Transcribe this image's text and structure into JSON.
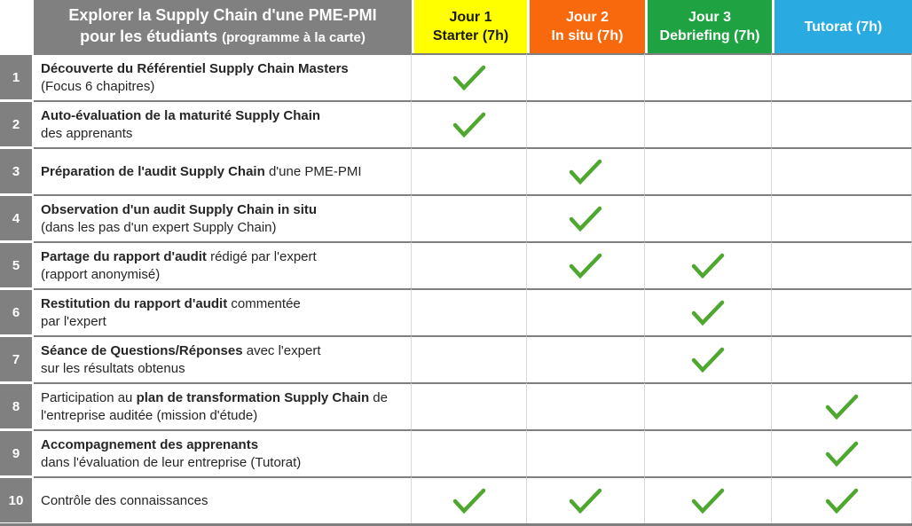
{
  "header": {
    "title_line1": "Explorer la Supply Chain d'une PME-PMI",
    "title_line2_main": "pour les étudiants ",
    "title_line2_note": "(programme à la carte)",
    "title_bg": "#808080",
    "columns": [
      {
        "id": "jour1",
        "label_line1": "Jour 1",
        "label_line2": "Starter (7h)",
        "bg": "#FFFF00",
        "color": "#1a1a1a"
      },
      {
        "id": "jour2",
        "label_line1": "Jour 2",
        "label_line2": "In situ (7h)",
        "bg": "#F8690D",
        "color": "#FFFFFF"
      },
      {
        "id": "jour3",
        "label_line1": "Jour 3",
        "label_line2": "Debriefing (7h)",
        "bg": "#1FA342",
        "color": "#FFFFFF"
      },
      {
        "id": "tutorat",
        "label_line1": "Tutorat (7h)",
        "label_line2": "",
        "bg": "#29ABE2",
        "color": "#FFFFFF"
      }
    ]
  },
  "check_icon": {
    "name": "green-checkmark",
    "color": "#4EA72E"
  },
  "rows": [
    {
      "num": "1",
      "segments": [
        {
          "text": "Découverte du Référentiel Supply Chain Masters",
          "bold": true
        },
        {
          "text": "(Focus 6 chapitres)",
          "bold": false,
          "break_before": true
        }
      ],
      "checks": [
        true,
        false,
        false,
        false
      ]
    },
    {
      "num": "2",
      "segments": [
        {
          "text": "Auto-évaluation de la maturité Supply Chain",
          "bold": true
        },
        {
          "text": "des apprenants",
          "bold": false,
          "break_before": true
        }
      ],
      "checks": [
        true,
        false,
        false,
        false
      ]
    },
    {
      "num": "3",
      "segments": [
        {
          "text": "Préparation de l'audit Supply Chain",
          "bold": true
        },
        {
          "text": " d'une PME-PMI",
          "bold": false
        }
      ],
      "checks": [
        false,
        true,
        false,
        false
      ]
    },
    {
      "num": "4",
      "segments": [
        {
          "text": "Observation d'un audit Supply Chain in situ",
          "bold": true
        },
        {
          "text": "(dans les pas d'un expert Supply Chain)",
          "bold": false,
          "break_before": true
        }
      ],
      "checks": [
        false,
        true,
        false,
        false
      ]
    },
    {
      "num": "5",
      "segments": [
        {
          "text": "Partage du rapport d'audit",
          "bold": true
        },
        {
          "text": " rédigé par l'expert",
          "bold": false
        },
        {
          "text": "(rapport anonymisé)",
          "bold": false,
          "break_before": true
        }
      ],
      "checks": [
        false,
        true,
        true,
        false
      ]
    },
    {
      "num": "6",
      "segments": [
        {
          "text": "Restitution du rapport d'audit",
          "bold": true
        },
        {
          "text": " commentée",
          "bold": false
        },
        {
          "text": "par l'expert",
          "bold": false,
          "break_before": true
        }
      ],
      "checks": [
        false,
        false,
        true,
        false
      ]
    },
    {
      "num": "7",
      "segments": [
        {
          "text": "Séance de Questions/Réponses",
          "bold": true
        },
        {
          "text": " avec l'expert",
          "bold": false
        },
        {
          "text": "sur les résultats obtenus",
          "bold": false,
          "break_before": true
        }
      ],
      "checks": [
        false,
        false,
        true,
        false
      ]
    },
    {
      "num": "8",
      "segments": [
        {
          "text": "Participation au ",
          "bold": false
        },
        {
          "text": "plan de transformation Supply Chain",
          "bold": true
        },
        {
          "text": " de l'entreprise auditée (mission d'étude)",
          "bold": false
        }
      ],
      "checks": [
        false,
        false,
        false,
        true
      ]
    },
    {
      "num": "9",
      "segments": [
        {
          "text": "Accompagnement des apprenants",
          "bold": true
        },
        {
          "text": "dans l'évaluation de leur entreprise (Tutorat)",
          "bold": false,
          "break_before": true
        }
      ],
      "checks": [
        false,
        false,
        false,
        true
      ]
    },
    {
      "num": "10",
      "segments": [
        {
          "text": "Contrôle des connaissances",
          "bold": false
        }
      ],
      "checks": [
        true,
        true,
        true,
        true
      ]
    }
  ]
}
